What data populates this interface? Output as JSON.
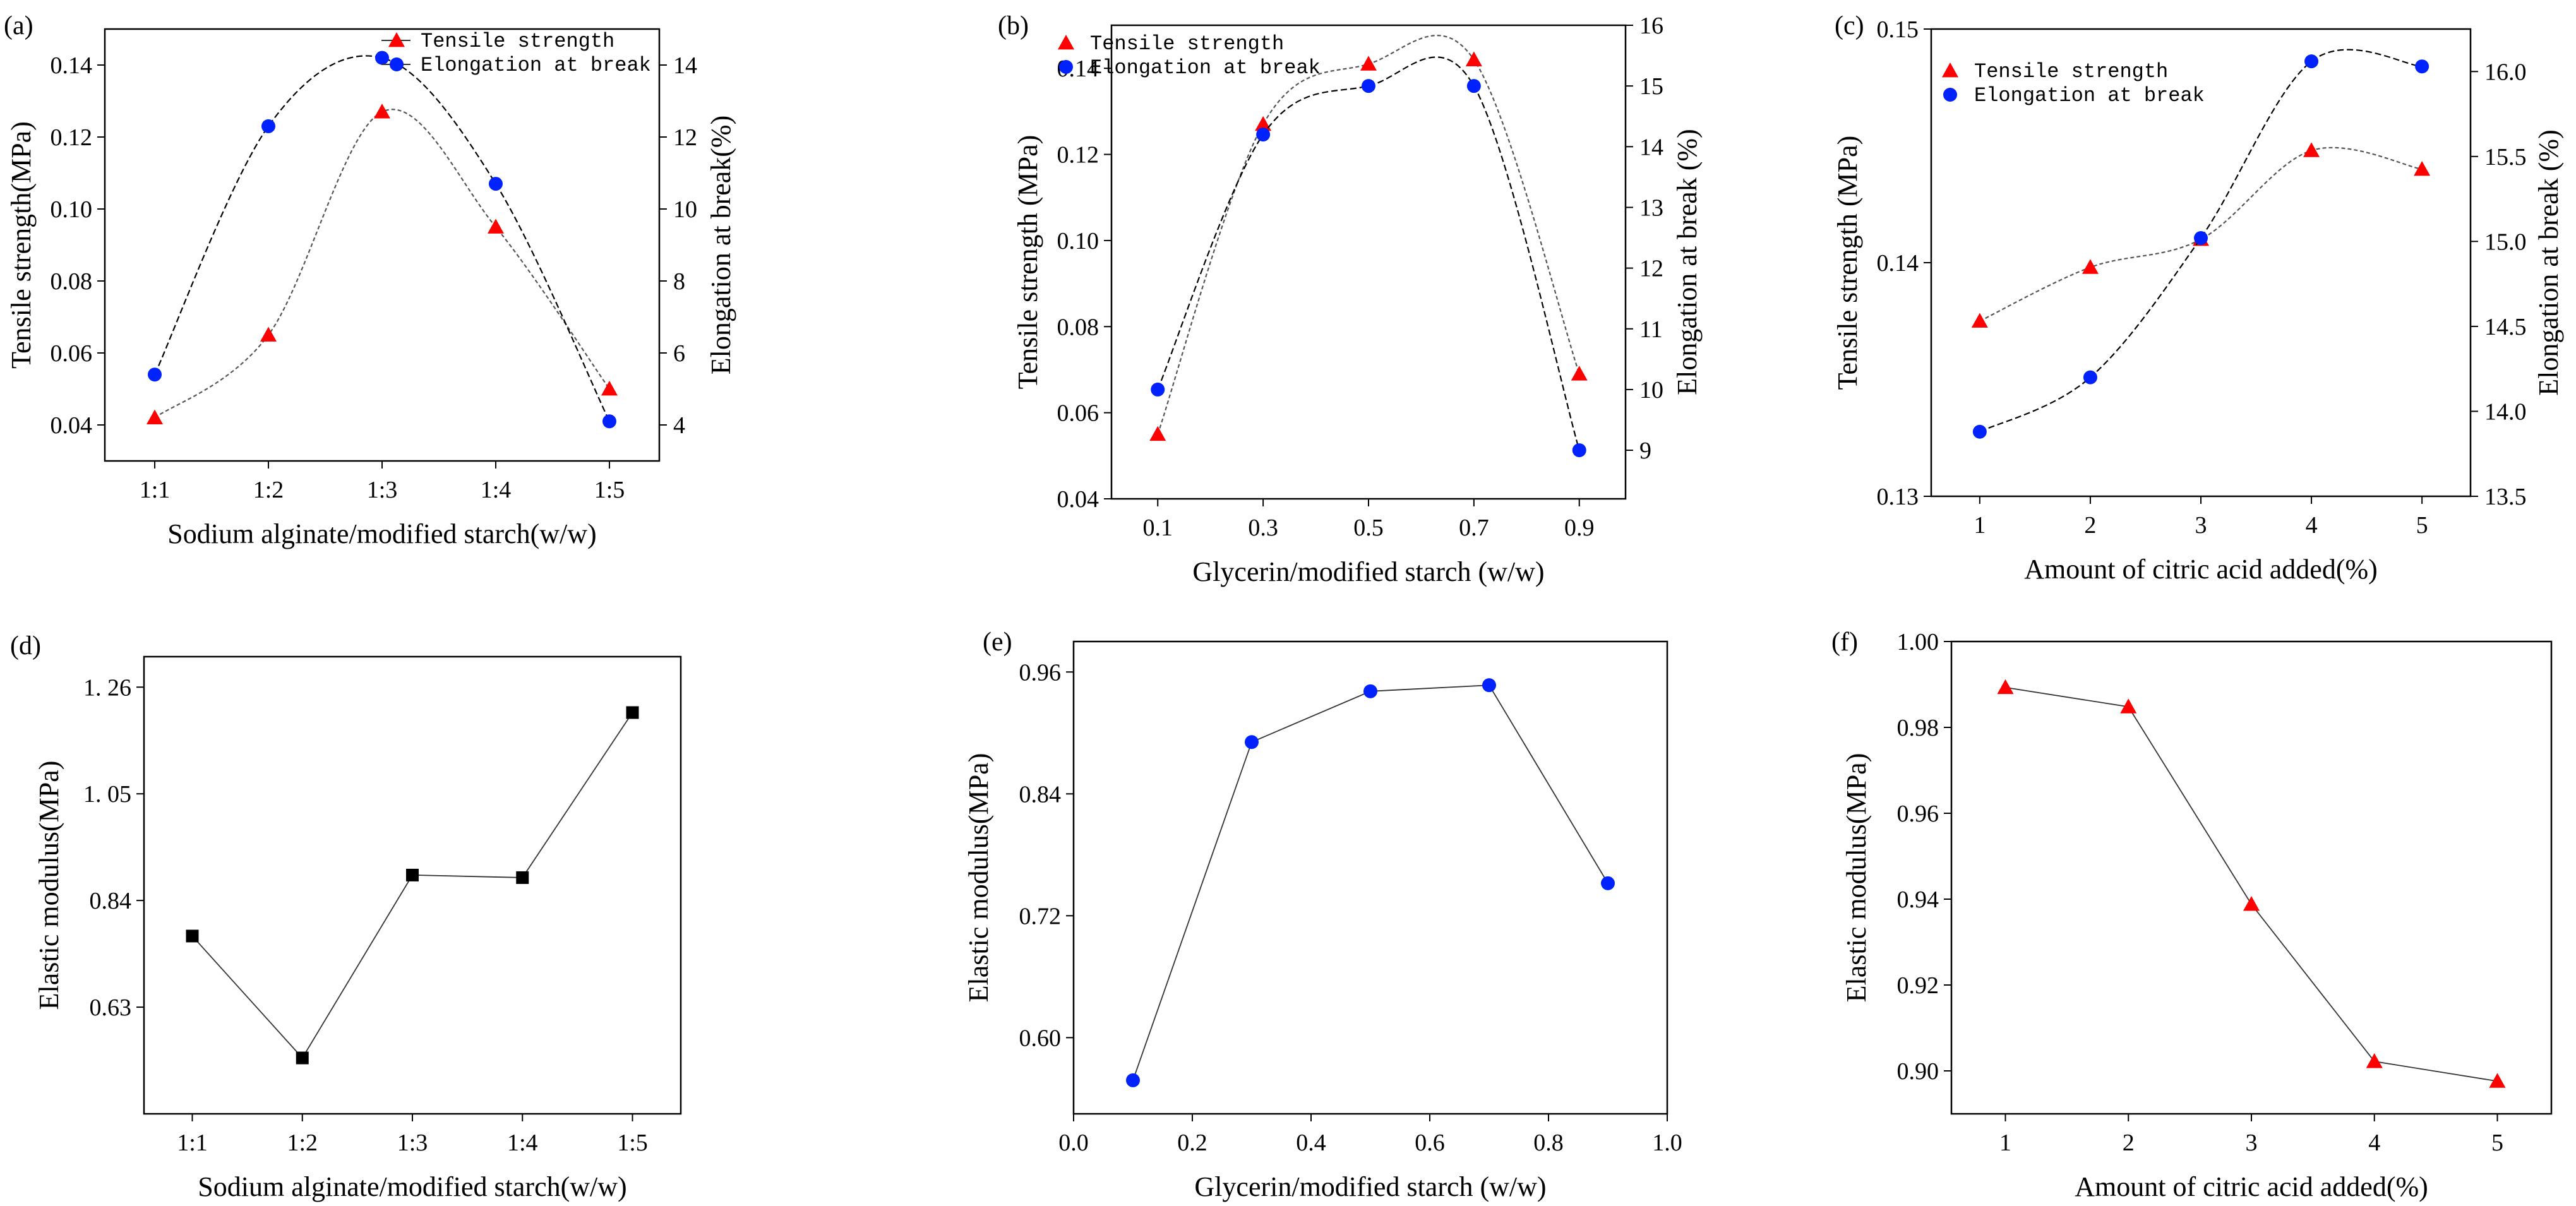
{
  "colors": {
    "red": "#ff0000",
    "blue": "#0022ff",
    "black": "#000000"
  },
  "chart_data": [
    {
      "type": "line",
      "panel_label": "(a)",
      "xlabel": "Sodium alginate/modified starch(w/w)",
      "categories": [
        "1:1",
        "1:2",
        "1:3",
        "1:4",
        "1:5"
      ],
      "ylabel": "Tensile strength(MPa)",
      "ylim": [
        0.03,
        0.15
      ],
      "yticks": [
        0.04,
        0.06,
        0.08,
        0.1,
        0.12,
        0.14
      ],
      "ytick_labels": [
        "0.04",
        "0.06",
        "0.08",
        "0.10",
        "0.12",
        "0.14"
      ],
      "y2label": "Elongation at break(%)",
      "y2lim": [
        3,
        15
      ],
      "y2ticks": [
        4,
        6,
        8,
        10,
        12,
        14
      ],
      "y2tick_labels": [
        "4",
        "6",
        "8",
        "10",
        "12",
        "14"
      ],
      "legend_position": "top-right",
      "series": [
        {
          "name": "Tensile strength",
          "axis": "left",
          "marker": "triangle",
          "color": "#ff0000",
          "values": [
            0.042,
            0.065,
            0.127,
            0.095,
            0.05
          ]
        },
        {
          "name": "Elongation at break",
          "axis": "right",
          "marker": "circle",
          "color": "#0022ff",
          "values": [
            5.4,
            12.3,
            14.2,
            10.7,
            4.1
          ]
        }
      ]
    },
    {
      "type": "line",
      "panel_label": "(b)",
      "xlabel": "Glycerin/modified starch (w/w)",
      "categories": [
        "0.1",
        "0.3",
        "0.5",
        "0.7",
        "0.9"
      ],
      "ylabel": "Tensile strength (MPa)",
      "ylim": [
        0.04,
        0.15
      ],
      "yticks": [
        0.04,
        0.06,
        0.08,
        0.1,
        0.12,
        0.14
      ],
      "ytick_labels": [
        "0.04",
        "0.06",
        "0.08",
        "0.10",
        "0.12",
        "0.14"
      ],
      "y2label": "Elongation at break (%)",
      "y2lim": [
        8.2,
        16
      ],
      "y2ticks": [
        9,
        10,
        11,
        12,
        13,
        14,
        15,
        16
      ],
      "y2tick_labels": [
        "9",
        "10",
        "11",
        "12",
        "13",
        "14",
        "15",
        "16"
      ],
      "legend_position": "top-left",
      "series": [
        {
          "name": "Tensile strength",
          "axis": "left",
          "marker": "triangle",
          "color": "#ff0000",
          "values": [
            0.055,
            0.127,
            0.141,
            0.142,
            0.069
          ]
        },
        {
          "name": "Elongation at break",
          "axis": "right",
          "marker": "circle",
          "color": "#0022ff",
          "values": [
            10.0,
            14.2,
            15.0,
            15.0,
            9.0
          ]
        }
      ]
    },
    {
      "type": "line",
      "panel_label": "(c)",
      "xlabel": "Amount of citric acid added(%)",
      "categories": [
        "1",
        "2",
        "3",
        "4",
        "5"
      ],
      "ylabel": "Tensile strength (MPa)",
      "ylim": [
        0.13,
        0.15
      ],
      "yticks": [
        0.13,
        0.14,
        0.15
      ],
      "ytick_labels": [
        "0.13",
        "0.14",
        "0.15"
      ],
      "y2label": "Elongation at break (%)",
      "y2lim": [
        13.5,
        16.25
      ],
      "y2ticks": [
        13.5,
        14.0,
        14.5,
        15.0,
        15.5,
        16.0
      ],
      "y2tick_labels": [
        "13.5",
        "14.0",
        "14.5",
        "15.0",
        "15.5",
        "16.0"
      ],
      "legend_position": "top-left",
      "series": [
        {
          "name": "Tensile strength",
          "axis": "left",
          "marker": "triangle",
          "color": "#ff0000",
          "values": [
            0.1375,
            0.1398,
            0.141,
            0.1448,
            0.144
          ]
        },
        {
          "name": "Elongation at break",
          "axis": "right",
          "marker": "circle",
          "color": "#0022ff",
          "values": [
            13.88,
            14.2,
            15.02,
            16.06,
            16.03
          ]
        }
      ]
    },
    {
      "type": "line",
      "panel_label": "(d)",
      "xlabel": "Sodium alginate/modified starch(w/w)",
      "categories": [
        "1:1",
        "1:2",
        "1:3",
        "1:4",
        "1:5"
      ],
      "ylabel": "Elastic modulus(MPa)",
      "ylim": [
        0.42,
        1.32
      ],
      "yticks": [
        0.63,
        0.84,
        1.05,
        1.26
      ],
      "ytick_labels": [
        "0.63",
        "0.84",
        "1. 05",
        "1. 26"
      ],
      "series": [
        {
          "name": "Elastic modulus",
          "marker": "square",
          "color": "#000000",
          "values": [
            0.77,
            0.53,
            0.89,
            0.885,
            1.21
          ]
        }
      ]
    },
    {
      "type": "line",
      "panel_label": "(e)",
      "xlabel": "Glycerin/modified starch (w/w)",
      "x_numeric": true,
      "x": [
        0.1,
        0.3,
        0.5,
        0.7,
        0.9
      ],
      "xlim": [
        0,
        1
      ],
      "xticks": [
        0,
        0.2,
        0.4,
        0.6,
        0.8,
        1.0
      ],
      "xtick_labels": [
        "0.0",
        "0.2",
        "0.4",
        "0.6",
        "0.8",
        "1.0"
      ],
      "ylabel": "Elastic modulus(MPa)",
      "ylim": [
        0.525,
        0.99
      ],
      "yticks": [
        0.6,
        0.72,
        0.84,
        0.96
      ],
      "ytick_labels": [
        "0.60",
        "0.72",
        "0.84",
        "0.96"
      ],
      "series": [
        {
          "name": "Elastic modulus",
          "marker": "circle",
          "color": "#0022ff",
          "values": [
            0.558,
            0.891,
            0.941,
            0.947,
            0.752
          ]
        }
      ]
    },
    {
      "type": "line",
      "panel_label": "(f)",
      "xlabel": "Amount of citric acid added(%)",
      "categories": [
        "1",
        "2",
        "3",
        "4",
        "5"
      ],
      "ylabel": "Elastic modulus(MPa)",
      "ylim": [
        0.89,
        1.0
      ],
      "yticks": [
        0.9,
        0.92,
        0.94,
        0.96,
        0.98,
        1.0
      ],
      "ytick_labels": [
        "0.90",
        "0.92",
        "0.94",
        "0.96",
        "0.98",
        "1.00"
      ],
      "series": [
        {
          "name": "Elastic modulus",
          "marker": "triangle",
          "color": "#ff0000",
          "values": [
            0.9893,
            0.9848,
            0.9388,
            0.9022,
            0.8976
          ]
        }
      ]
    }
  ]
}
